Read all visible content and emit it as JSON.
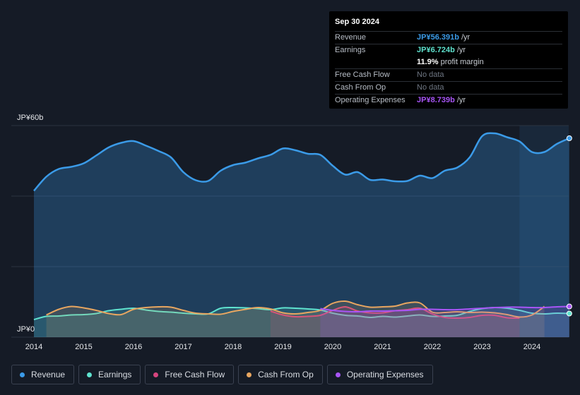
{
  "tooltip": {
    "date": "Sep 30 2024",
    "rows": [
      {
        "label": "Revenue",
        "value": "JP¥56.391b",
        "unit": "/yr",
        "color": "#3b9be8"
      },
      {
        "label": "Earnings",
        "value": "JP¥6.724b",
        "unit": "/yr",
        "color": "#5fe3cf"
      },
      {
        "label": "",
        "value": "11.9%",
        "unit": "profit margin",
        "color": "#ffffff"
      },
      {
        "label": "Free Cash Flow",
        "value": "No data",
        "unit": "",
        "color": "#6e7682"
      },
      {
        "label": "Cash From Op",
        "value": "No data",
        "unit": "",
        "color": "#6e7682"
      },
      {
        "label": "Operating Expenses",
        "value": "JP¥8.739b",
        "unit": "/yr",
        "color": "#a855f7"
      }
    ]
  },
  "legend": [
    {
      "label": "Revenue",
      "color": "#3b9be8"
    },
    {
      "label": "Earnings",
      "color": "#5fe3cf"
    },
    {
      "label": "Free Cash Flow",
      "color": "#d6457e"
    },
    {
      "label": "Cash From Op",
      "color": "#e8a660"
    },
    {
      "label": "Operating Expenses",
      "color": "#a855f7"
    }
  ],
  "chart_data": {
    "type": "area",
    "title": "",
    "xlabel": "",
    "ylabel": "",
    "unit": "JP¥ billions",
    "ylim": [
      0,
      60
    ],
    "y_tick_labels": [
      "JP¥60b",
      "JP¥0"
    ],
    "x_tick_labels": [
      "2014",
      "2015",
      "2016",
      "2017",
      "2018",
      "2019",
      "2020",
      "2021",
      "2022",
      "2023",
      "2024"
    ],
    "forecast_shade_from": 2023.75,
    "series": [
      {
        "name": "Revenue",
        "color": "#3b9be8",
        "x": [
          2014.0,
          2014.25,
          2014.5,
          2014.75,
          2015.0,
          2015.25,
          2015.5,
          2015.75,
          2016.0,
          2016.25,
          2016.5,
          2016.75,
          2017.0,
          2017.25,
          2017.5,
          2017.75,
          2018.0,
          2018.25,
          2018.5,
          2018.75,
          2019.0,
          2019.25,
          2019.5,
          2019.75,
          2020.0,
          2020.25,
          2020.5,
          2020.75,
          2021.0,
          2021.25,
          2021.5,
          2021.75,
          2022.0,
          2022.25,
          2022.5,
          2022.75,
          2023.0,
          2023.25,
          2023.5,
          2023.75,
          2024.0,
          2024.25,
          2024.5,
          2024.75
        ],
        "values": [
          41.5,
          45.5,
          47.7,
          48.3,
          49.3,
          51.5,
          53.8,
          55.1,
          55.6,
          54.3,
          52.8,
          51.0,
          46.8,
          44.5,
          44.3,
          47.2,
          48.8,
          49.5,
          50.7,
          51.7,
          53.5,
          53.0,
          52.0,
          51.7,
          48.6,
          46.1,
          46.8,
          44.6,
          44.7,
          44.2,
          44.3,
          45.8,
          45.1,
          47.2,
          48.1,
          51.0,
          57.0,
          57.8,
          56.7,
          55.5,
          52.5,
          52.5,
          54.8,
          56.4
        ]
      },
      {
        "name": "Earnings",
        "color": "#5fe3cf",
        "x": [
          2014.0,
          2014.25,
          2014.5,
          2014.75,
          2015.0,
          2015.25,
          2015.5,
          2015.75,
          2016.0,
          2016.25,
          2016.5,
          2016.75,
          2017.0,
          2017.25,
          2017.5,
          2017.75,
          2018.0,
          2018.25,
          2018.5,
          2018.75,
          2019.0,
          2019.25,
          2019.5,
          2019.75,
          2020.0,
          2020.25,
          2020.5,
          2020.75,
          2021.0,
          2021.25,
          2021.5,
          2021.75,
          2022.0,
          2022.25,
          2022.5,
          2022.75,
          2023.0,
          2023.25,
          2023.5,
          2023.75,
          2024.0,
          2024.25,
          2024.5,
          2024.75
        ],
        "values": [
          5.0,
          5.9,
          6.0,
          6.3,
          6.4,
          6.7,
          7.5,
          7.9,
          8.2,
          7.7,
          7.3,
          7.1,
          6.8,
          6.6,
          6.6,
          8.2,
          8.4,
          8.3,
          8.1,
          7.8,
          8.3,
          8.2,
          8.0,
          7.7,
          6.8,
          6.2,
          6.0,
          5.6,
          5.9,
          5.7,
          6.0,
          6.3,
          5.9,
          6.0,
          6.2,
          7.3,
          8.1,
          8.4,
          8.2,
          7.6,
          6.8,
          6.6,
          6.8,
          6.7
        ]
      },
      {
        "name": "Free Cash Flow",
        "color": "#d6457e",
        "x": [
          2018.75,
          2019.0,
          2019.25,
          2019.5,
          2019.75,
          2020.0,
          2020.25,
          2020.5,
          2020.75,
          2021.0,
          2021.25,
          2021.5,
          2021.75,
          2022.0,
          2022.25,
          2022.5,
          2022.75,
          2023.0,
          2023.25,
          2023.5,
          2023.75
        ],
        "values": [
          7.4,
          6.3,
          5.8,
          5.9,
          6.2,
          7.6,
          8.6,
          7.4,
          6.9,
          6.9,
          7.5,
          7.8,
          8.2,
          6.6,
          5.6,
          5.4,
          5.6,
          6.2,
          6.2,
          5.5,
          5.4
        ]
      },
      {
        "name": "Cash From Op",
        "color": "#e8a660",
        "x": [
          2014.25,
          2014.5,
          2014.75,
          2015.0,
          2015.25,
          2015.5,
          2015.75,
          2016.0,
          2016.25,
          2016.5,
          2016.75,
          2017.0,
          2017.25,
          2017.5,
          2017.75,
          2018.0,
          2018.25,
          2018.5,
          2018.75,
          2019.0,
          2019.25,
          2019.5,
          2019.75,
          2020.0,
          2020.25,
          2020.5,
          2020.75,
          2021.0,
          2021.25,
          2021.5,
          2021.75,
          2022.0,
          2022.25,
          2022.5,
          2022.75,
          2023.0,
          2023.25,
          2023.5,
          2023.75,
          2024.0,
          2024.25
        ],
        "values": [
          6.3,
          7.9,
          8.7,
          8.3,
          7.6,
          6.7,
          6.4,
          7.9,
          8.4,
          8.6,
          8.5,
          7.6,
          6.8,
          6.6,
          6.5,
          7.3,
          7.9,
          8.4,
          8.0,
          6.9,
          6.6,
          7.0,
          7.6,
          9.6,
          10.2,
          9.2,
          8.5,
          8.6,
          8.8,
          9.7,
          9.7,
          7.1,
          7.0,
          7.2,
          7.0,
          7.1,
          6.9,
          6.4,
          5.7,
          6.3,
          8.7
        ]
      },
      {
        "name": "Operating Expenses",
        "color": "#a855f7",
        "x": [
          2019.75,
          2020.0,
          2020.25,
          2020.5,
          2020.75,
          2021.0,
          2021.25,
          2021.5,
          2021.75,
          2022.0,
          2022.25,
          2022.5,
          2022.75,
          2023.0,
          2023.25,
          2023.5,
          2023.75,
          2024.0,
          2024.25,
          2024.5,
          2024.75
        ],
        "values": [
          8.1,
          7.6,
          7.3,
          7.2,
          7.4,
          7.4,
          7.5,
          7.6,
          7.9,
          7.9,
          7.8,
          7.8,
          8.0,
          8.2,
          8.4,
          8.5,
          8.5,
          8.4,
          8.4,
          8.6,
          8.7
        ]
      }
    ]
  }
}
